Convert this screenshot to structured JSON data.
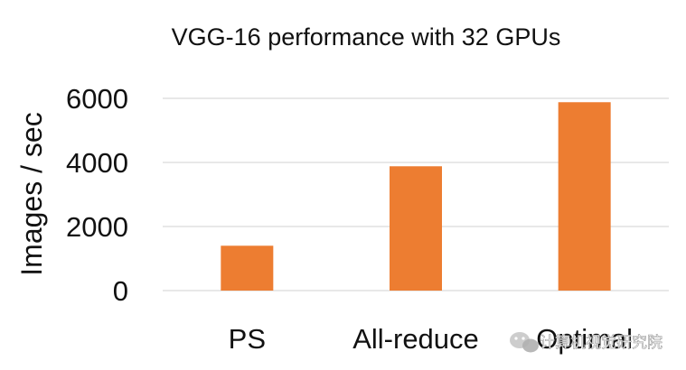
{
  "chart_data": {
    "type": "bar",
    "title": "VGG-16 performance with 32 GPUs",
    "xlabel": "",
    "ylabel": "Images / sec",
    "categories": [
      "PS",
      "All-reduce",
      "Optimal"
    ],
    "values": [
      1400,
      3880,
      5880
    ],
    "ylim": [
      0,
      6000
    ],
    "yticks": [
      0,
      2000,
      4000,
      6000
    ],
    "grid": true,
    "legend": "none",
    "bar_color": "#ED7D31",
    "grid_color": "#D9D9D9"
  },
  "watermark": {
    "text": "计算机视觉研究院"
  }
}
